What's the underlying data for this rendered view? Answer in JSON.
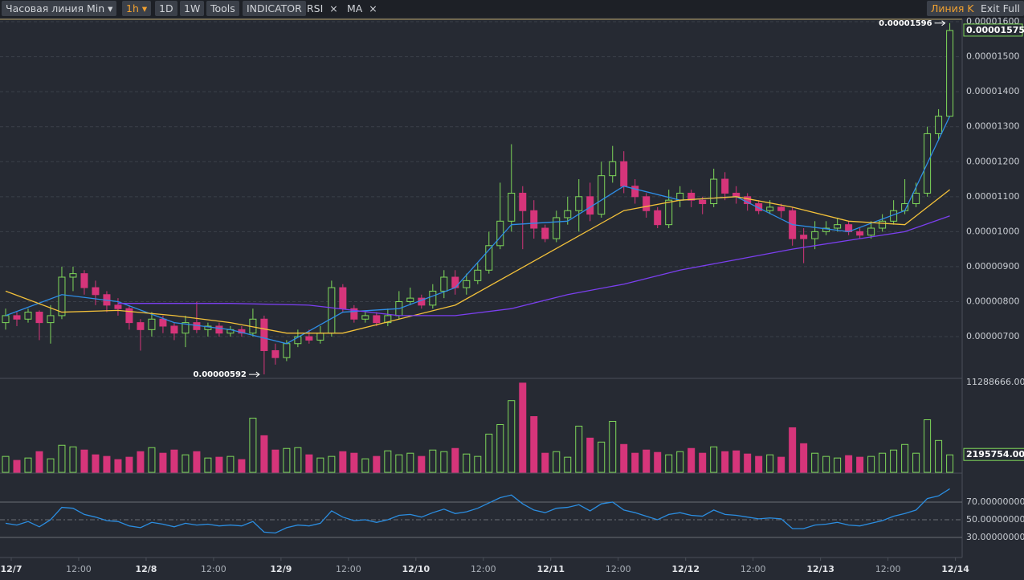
{
  "toolbar": {
    "buttons": [
      "Часовая линия",
      "Min",
      "1h",
      "1D",
      "1W",
      "Tools",
      "INDICATOR"
    ],
    "indicators": [
      "RSI",
      "MA"
    ],
    "right": [
      "Линия K",
      "Exit Full"
    ]
  },
  "chart_data": [
    {
      "type": "candlestick",
      "up_color": "#7fd85a",
      "down_color": "#d6357a",
      "grid": true,
      "ylim": [
        5.83e-06,
        1.607e-05
      ],
      "yticks": [
        {
          "value": 1.6e-05,
          "label": "0.00001600"
        },
        {
          "value": 1.5e-05,
          "label": "0.00001500"
        },
        {
          "value": 1.4e-05,
          "label": "0.00001400"
        },
        {
          "value": 1.3e-05,
          "label": "0.00001300"
        },
        {
          "value": 1.2e-05,
          "label": "0.00001200"
        },
        {
          "value": 1.1e-05,
          "label": "0.00001100"
        },
        {
          "value": 1e-05,
          "label": "0.00001000"
        },
        {
          "value": 9e-06,
          "label": "0.00000900"
        },
        {
          "value": 8e-06,
          "label": "0.00000800"
        },
        {
          "value": 7e-06,
          "label": "0.00000700"
        }
      ],
      "candles": [
        [
          7.4e-06,
          7.8e-06,
          7.2e-06,
          7.6e-06
        ],
        [
          7.6e-06,
          7.7e-06,
          7.3e-06,
          7.5e-06
        ],
        [
          7.5e-06,
          7.8e-06,
          7.4e-06,
          7.7e-06
        ],
        [
          7.7e-06,
          7.75e-06,
          6.9e-06,
          7.4e-06
        ],
        [
          7.4e-06,
          7.9e-06,
          6.8e-06,
          7.6e-06
        ],
        [
          7.6e-06,
          9e-06,
          7.5e-06,
          8.7e-06
        ],
        [
          8.7e-06,
          9e-06,
          8.3e-06,
          8.8e-06
        ],
        [
          8.8e-06,
          8.9e-06,
          8.2e-06,
          8.4e-06
        ],
        [
          8.4e-06,
          8.6e-06,
          7.9e-06,
          8.2e-06
        ],
        [
          8.2e-06,
          8.3e-06,
          7.7e-06,
          7.9e-06
        ],
        [
          7.9e-06,
          8.1e-06,
          7.6e-06,
          7.8e-06
        ],
        [
          7.8e-06,
          7.9e-06,
          7.2e-06,
          7.4e-06
        ],
        [
          7.4e-06,
          7.5e-06,
          6.6e-06,
          7.2e-06
        ],
        [
          7.2e-06,
          7.7e-06,
          7e-06,
          7.5e-06
        ],
        [
          7.5e-06,
          7.6e-06,
          7.1e-06,
          7.3e-06
        ],
        [
          7.3e-06,
          7.4e-06,
          6.9e-06,
          7.1e-06
        ],
        [
          7.1e-06,
          7.6e-06,
          6.7e-06,
          7.4e-06
        ],
        [
          7.4e-06,
          8e-06,
          7.1e-06,
          7.2e-06
        ],
        [
          7.2e-06,
          7.4e-06,
          7e-06,
          7.3e-06
        ],
        [
          7.3e-06,
          7.4e-06,
          7e-06,
          7.1e-06
        ],
        [
          7.1e-06,
          7.3e-06,
          7e-06,
          7.2e-06
        ],
        [
          7.2e-06,
          7.3e-06,
          7e-06,
          7.1e-06
        ],
        [
          7.1e-06,
          7.8e-06,
          7e-06,
          7.5e-06
        ],
        [
          7.5e-06,
          7.6e-06,
          5.92e-06,
          6.6e-06
        ],
        [
          6.6e-06,
          6.8e-06,
          6.2e-06,
          6.4e-06
        ],
        [
          6.4e-06,
          6.9e-06,
          6.3e-06,
          6.8e-06
        ],
        [
          6.8e-06,
          7.2e-06,
          6.7e-06,
          7e-06
        ],
        [
          7e-06,
          7.2e-06,
          6.8e-06,
          6.9e-06
        ],
        [
          6.9e-06,
          7.3e-06,
          6.8e-06,
          7.1e-06
        ],
        [
          7.1e-06,
          8.6e-06,
          7e-06,
          8.4e-06
        ],
        [
          8.4e-06,
          8.5e-06,
          7.7e-06,
          7.8e-06
        ],
        [
          7.8e-06,
          7.9e-06,
          7.4e-06,
          7.5e-06
        ],
        [
          7.5e-06,
          7.7e-06,
          7.4e-06,
          7.6e-06
        ],
        [
          7.6e-06,
          7.7e-06,
          7.3e-06,
          7.4e-06
        ],
        [
          7.4e-06,
          7.8e-06,
          7.3e-06,
          7.6e-06
        ],
        [
          7.6e-06,
          8.3e-06,
          7.5e-06,
          8e-06
        ],
        [
          8e-06,
          8.4e-06,
          7.9e-06,
          8.1e-06
        ],
        [
          8.1e-06,
          8.2e-06,
          7.8e-06,
          7.9e-06
        ],
        [
          7.9e-06,
          8.5e-06,
          7.8e-06,
          8.3e-06
        ],
        [
          8.3e-06,
          8.9e-06,
          8.1e-06,
          8.7e-06
        ],
        [
          8.7e-06,
          8.9e-06,
          8.2e-06,
          8.4e-06
        ],
        [
          8.4e-06,
          8.8e-06,
          8.2e-06,
          8.6e-06
        ],
        [
          8.6e-06,
          9.1e-06,
          8.5e-06,
          8.9e-06
        ],
        [
          8.9e-06,
          1e-05,
          8.8e-06,
          9.6e-06
        ],
        [
          9.6e-06,
          1.14e-05,
          9.5e-06,
          1.03e-05
        ],
        [
          1.03e-05,
          1.25e-05,
          1e-05,
          1.11e-05
        ],
        [
          1.11e-05,
          1.13e-05,
          9.5e-06,
          1.06e-05
        ],
        [
          1.06e-05,
          1.09e-05,
          9.8e-06,
          1.01e-05
        ],
        [
          1.01e-05,
          1.02e-05,
          9.7e-06,
          9.8e-06
        ],
        [
          9.8e-06,
          1.06e-05,
          9.7e-06,
          1.04e-05
        ],
        [
          1.04e-05,
          1.1e-05,
          1.02e-05,
          1.06e-05
        ],
        [
          1.06e-05,
          1.15e-05,
          1e-05,
          1.1e-05
        ],
        [
          1.1e-05,
          1.14e-05,
          1.03e-05,
          1.05e-05
        ],
        [
          1.05e-05,
          1.2e-05,
          1.04e-05,
          1.16e-05
        ],
        [
          1.16e-05,
          1.245e-05,
          1.14e-05,
          1.2e-05
        ],
        [
          1.2e-05,
          1.23e-05,
          1.11e-05,
          1.13e-05
        ],
        [
          1.13e-05,
          1.15e-05,
          1.08e-05,
          1.1e-05
        ],
        [
          1.1e-05,
          1.11e-05,
          1.04e-05,
          1.06e-05
        ],
        [
          1.06e-05,
          1.07e-05,
          1.01e-05,
          1.02e-05
        ],
        [
          1.02e-05,
          1.12e-05,
          1.01e-05,
          1.09e-05
        ],
        [
          1.09e-05,
          1.13e-05,
          1.07e-05,
          1.11e-05
        ],
        [
          1.11e-05,
          1.12e-05,
          1.07e-05,
          1.09e-05
        ],
        [
          1.09e-05,
          1.1e-05,
          1.05e-05,
          1.08e-05
        ],
        [
          1.08e-05,
          1.18e-05,
          1.07e-05,
          1.15e-05
        ],
        [
          1.15e-05,
          1.17e-05,
          1.09e-05,
          1.11e-05
        ],
        [
          1.11e-05,
          1.13e-05,
          1.08e-05,
          1.1e-05
        ],
        [
          1.1e-05,
          1.11e-05,
          1.06e-05,
          1.08e-05
        ],
        [
          1.08e-05,
          1.09e-05,
          1.05e-05,
          1.06e-05
        ],
        [
          1.06e-05,
          1.09e-05,
          1.05e-05,
          1.07e-05
        ],
        [
          1.07e-05,
          1.08e-05,
          1.04e-05,
          1.06e-05
        ],
        [
          1.06e-05,
          1.07e-05,
          9.6e-06,
          9.8e-06
        ],
        [
          9.9e-06,
          1.01e-05,
          9.1e-06,
          9.8e-06
        ],
        [
          9.8e-06,
          1.03e-05,
          9.5e-06,
          1e-05
        ],
        [
          1e-05,
          1.03e-05,
          9.9e-06,
          1.01e-05
        ],
        [
          1.01e-05,
          1.04e-05,
          1e-05,
          1.02e-05
        ],
        [
          1.02e-05,
          1.03e-05,
          9.9e-06,
          1e-05
        ],
        [
          1e-05,
          1.01e-05,
          9.8e-06,
          9.9e-06
        ],
        [
          9.9e-06,
          1.03e-05,
          9.8e-06,
          1.01e-05
        ],
        [
          1.01e-05,
          1.05e-05,
          1e-05,
          1.03e-05
        ],
        [
          1.03e-05,
          1.09e-05,
          1.02e-05,
          1.06e-05
        ],
        [
          1.06e-05,
          1.15e-05,
          1.05e-05,
          1.08e-05
        ],
        [
          1.08e-05,
          1.14e-05,
          1.07e-05,
          1.11e-05
        ],
        [
          1.11e-05,
          1.3e-05,
          1.1e-05,
          1.28e-05
        ],
        [
          1.28e-05,
          1.35e-05,
          1.26e-05,
          1.33e-05
        ],
        [
          1.33e-05,
          1.596e-05,
          1.33e-05,
          1.575e-05
        ]
      ],
      "series": [
        {
          "color": "#2e8de6",
          "x": [
            0,
            5,
            10,
            15,
            20,
            25,
            30,
            35,
            40,
            45,
            50,
            55,
            60,
            65,
            70,
            75,
            80,
            84
          ],
          "values": [
            7.6e-06,
            8.2e-06,
            8e-06,
            7.4e-06,
            7.2e-06,
            6.8e-06,
            7.7e-06,
            7.8e-06,
            8.4e-06,
            1.02e-05,
            1.03e-05,
            1.13e-05,
            1.09e-05,
            1.1e-05,
            1.02e-05,
            1e-05,
            1.06e-05,
            1.33e-05
          ]
        },
        {
          "color": "#f3c13a",
          "x": [
            0,
            5,
            10,
            15,
            20,
            25,
            30,
            35,
            40,
            45,
            50,
            55,
            60,
            65,
            70,
            75,
            80,
            84
          ],
          "values": [
            8.3e-06,
            7.7e-06,
            7.75e-06,
            7.6e-06,
            7.4e-06,
            7.1e-06,
            7.1e-06,
            7.5e-06,
            7.9e-06,
            8.8e-06,
            9.7e-06,
            1.06e-05,
            1.09e-05,
            1.1e-05,
            1.07e-05,
            1.03e-05,
            1.02e-05,
            1.12e-05
          ]
        },
        {
          "color": "#7b3ff0",
          "x": [
            10,
            20,
            27,
            35,
            40,
            45,
            50,
            55,
            60,
            65,
            70,
            75,
            80,
            84
          ],
          "values": [
            7.95e-06,
            7.95e-06,
            7.9e-06,
            7.6e-06,
            7.6e-06,
            7.8e-06,
            8.2e-06,
            8.5e-06,
            8.9e-06,
            9.2e-06,
            9.5e-06,
            9.75e-06,
            1e-05,
            1.045e-05
          ]
        }
      ],
      "high_label": "0.00001596",
      "low_label": "0.00000592",
      "last_label": "0.00001575"
    },
    {
      "type": "bar",
      "ylim": [
        0,
        11288666
      ],
      "yticks": [
        {
          "value": 11288666,
          "label": "11288666.0000"
        }
      ],
      "values": [
        2000000.0,
        1500000.0,
        1800000.0,
        2600000.0,
        1700000.0,
        3400000.0,
        3200000.0,
        2800000.0,
        2200000.0,
        2000000.0,
        1600000.0,
        1900000.0,
        2600000.0,
        3100000.0,
        2400000.0,
        2800000.0,
        2200000.0,
        2600000.0,
        1800000.0,
        1900000.0,
        2000000.0,
        1600000.0,
        6800000.0,
        4600000.0,
        2800000.0,
        3000000.0,
        3100000.0,
        2200000.0,
        1800000.0,
        2000000.0,
        2600000.0,
        2400000.0,
        1700000.0,
        2000000.0,
        2700000.0,
        2200000.0,
        2400000.0,
        2000000.0,
        2800000.0,
        2600000.0,
        3000000.0,
        2300000.0,
        2000000.0,
        4800000.0,
        6000000.0,
        9000000.0,
        11200000.0,
        7000000.0,
        2400000.0,
        2600000.0,
        1900000.0,
        5800000.0,
        4300000.0,
        3800000.0,
        6400000.0,
        3500000.0,
        2400000.0,
        2800000.0,
        2500000.0,
        2200000.0,
        2600000.0,
        3000000.0,
        2400000.0,
        3200000.0,
        2600000.0,
        2700000.0,
        2300000.0,
        2000000.0,
        2200000.0,
        1900000.0,
        5600000.0,
        3600000.0,
        2400000.0,
        2000000.0,
        1800000.0,
        2100000.0,
        1900000.0,
        2000000.0,
        2400000.0,
        2800000.0,
        3500000.0,
        2400000.0,
        6600000.0,
        4000000.0,
        2195754
      ],
      "last_label": "2195754.0000"
    },
    {
      "type": "line",
      "color": "#2b8de0",
      "ylim": [
        10.9,
        101.8
      ],
      "yticks": [
        {
          "value": 70,
          "label": "70.00000000"
        },
        {
          "value": 50,
          "label": "50.00000000"
        },
        {
          "value": 30,
          "label": "30.00000000"
        }
      ],
      "values": [
        46,
        44,
        48,
        42,
        50,
        64,
        63,
        56,
        53,
        49,
        48,
        43,
        41,
        47,
        45,
        42,
        46,
        44,
        45,
        43,
        44,
        43,
        48,
        36,
        35,
        41,
        44,
        43,
        46,
        60,
        53,
        49,
        50,
        47,
        50,
        55,
        56,
        53,
        58,
        62,
        57,
        59,
        63,
        69,
        75,
        78,
        68,
        61,
        58,
        63,
        64,
        67,
        60,
        68,
        70,
        61,
        58,
        54,
        50,
        56,
        58,
        55,
        54,
        61,
        56,
        55,
        53,
        51,
        52,
        51,
        40,
        40,
        44,
        45,
        47,
        44,
        43,
        46,
        49,
        54,
        57,
        61,
        74,
        77,
        85
      ],
      "xlim": [
        0,
        85.6
      ],
      "xticks": [
        {
          "value": 1,
          "label": "12/7"
        },
        {
          "value": 7,
          "label": "12:00"
        },
        {
          "value": 13,
          "label": "12/8"
        },
        {
          "value": 19,
          "label": "12:00"
        },
        {
          "value": 25,
          "label": "12/9"
        },
        {
          "value": 31,
          "label": "12:00"
        },
        {
          "value": 37,
          "label": "12/10"
        },
        {
          "value": 43,
          "label": "12:00"
        },
        {
          "value": 49,
          "label": "12/11"
        },
        {
          "value": 55,
          "label": "12:00"
        },
        {
          "value": 61,
          "label": "12/12"
        },
        {
          "value": 67,
          "label": "12:00"
        },
        {
          "value": 73,
          "label": "12/13"
        },
        {
          "value": 79,
          "label": "12:00"
        },
        {
          "value": 85,
          "label": "12/14"
        }
      ]
    }
  ]
}
